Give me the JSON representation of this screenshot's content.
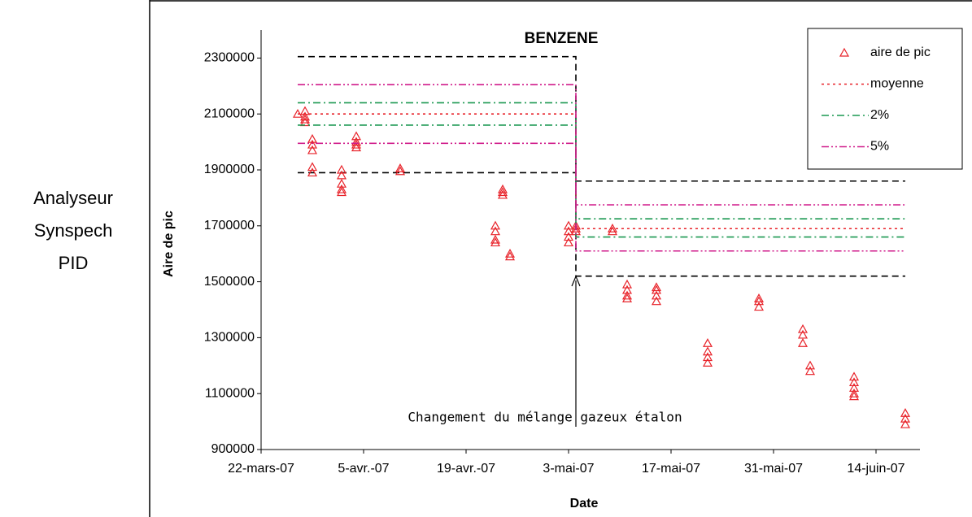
{
  "chart_data": {
    "type": "scatter",
    "title": "BENZENE",
    "side_label": [
      "Analyseur",
      "Synspech",
      "PID"
    ],
    "xlabel": "Date",
    "ylabel": "Aire de pic",
    "annotation": "Changement du mélange gazeux étalon",
    "xlim": [
      "2007-03-22",
      "2007-06-20"
    ],
    "xticks": [
      {
        "value": "2007-03-22",
        "label": "22-mars-07"
      },
      {
        "value": "2007-04-05",
        "label": "5-avr.-07"
      },
      {
        "value": "2007-04-19",
        "label": "19-avr.-07"
      },
      {
        "value": "2007-05-03",
        "label": "3-mai-07"
      },
      {
        "value": "2007-05-17",
        "label": "17-mai-07"
      },
      {
        "value": "2007-05-31",
        "label": "31-mai-07"
      },
      {
        "value": "2007-06-14",
        "label": "14-juin-07"
      }
    ],
    "ylim": [
      900000,
      2400000
    ],
    "yticks": [
      900000,
      1100000,
      1300000,
      1500000,
      1700000,
      1900000,
      2100000,
      2300000
    ],
    "series": [
      {
        "name": "aire de pic",
        "color": "#e8232a",
        "style": "marker",
        "x": [
          "2007-03-27",
          "2007-03-28",
          "2007-03-28",
          "2007-03-28",
          "2007-03-28",
          "2007-03-29",
          "2007-03-29",
          "2007-03-29",
          "2007-03-29",
          "2007-03-29",
          "2007-04-02",
          "2007-04-02",
          "2007-04-02",
          "2007-04-02",
          "2007-04-02",
          "2007-04-04",
          "2007-04-04",
          "2007-04-04",
          "2007-04-04",
          "2007-04-10",
          "2007-04-10",
          "2007-04-23",
          "2007-04-23",
          "2007-04-23",
          "2007-04-23",
          "2007-04-24",
          "2007-04-24",
          "2007-04-24",
          "2007-04-25",
          "2007-04-25",
          "2007-05-03",
          "2007-05-03",
          "2007-05-03",
          "2007-05-03",
          "2007-05-04",
          "2007-05-04",
          "2007-05-04",
          "2007-05-09",
          "2007-05-09",
          "2007-05-11",
          "2007-05-11",
          "2007-05-11",
          "2007-05-11",
          "2007-05-15",
          "2007-05-15",
          "2007-05-15",
          "2007-05-15",
          "2007-05-22",
          "2007-05-22",
          "2007-05-22",
          "2007-05-22",
          "2007-05-29",
          "2007-05-29",
          "2007-05-29",
          "2007-06-04",
          "2007-06-04",
          "2007-06-04",
          "2007-06-05",
          "2007-06-05",
          "2007-06-11",
          "2007-06-11",
          "2007-06-11",
          "2007-06-11",
          "2007-06-11",
          "2007-06-18",
          "2007-06-18",
          "2007-06-18"
        ],
        "values": [
          2100000,
          2110000,
          2090000,
          2080000,
          2070000,
          2010000,
          1990000,
          1970000,
          1910000,
          1890000,
          1900000,
          1880000,
          1850000,
          1830000,
          1820000,
          2020000,
          2000000,
          1990000,
          1980000,
          1905000,
          1895000,
          1700000,
          1680000,
          1650000,
          1640000,
          1830000,
          1820000,
          1810000,
          1600000,
          1590000,
          1700000,
          1680000,
          1660000,
          1640000,
          1700000,
          1690000,
          1680000,
          1690000,
          1680000,
          1490000,
          1470000,
          1450000,
          1440000,
          1480000,
          1470000,
          1450000,
          1430000,
          1280000,
          1250000,
          1230000,
          1210000,
          1440000,
          1430000,
          1410000,
          1330000,
          1310000,
          1280000,
          1200000,
          1180000,
          1160000,
          1140000,
          1120000,
          1100000,
          1090000,
          1030000,
          1010000,
          990000
        ]
      },
      {
        "name": "moyenne",
        "color": "#e8232a",
        "style": "dotted",
        "x": [
          "2007-03-27",
          "2007-05-04",
          "2007-05-04",
          "2007-06-18"
        ],
        "values": [
          2100000,
          2100000,
          1690000,
          1690000
        ]
      },
      {
        "name": "2%",
        "color": "#1a9850",
        "style": "dashdot",
        "x": [
          "2007-03-27",
          "2007-05-04",
          "2007-05-04",
          "2007-06-18"
        ],
        "values": [
          2140000,
          2140000,
          1725000,
          1725000
        ],
        "lower": [
          2060000,
          2060000,
          1660000,
          1660000
        ]
      },
      {
        "name": "5%",
        "color": "#d01c8b",
        "style": "dashdotdot",
        "x": [
          "2007-03-27",
          "2007-05-04",
          "2007-05-04",
          "2007-06-18"
        ],
        "values": [
          2205000,
          2205000,
          1775000,
          1775000
        ],
        "lower": [
          1995000,
          1995000,
          1610000,
          1610000
        ]
      }
    ],
    "limits": {
      "color": "#000000",
      "x": [
        "2007-03-27",
        "2007-05-04",
        "2007-05-04",
        "2007-06-18"
      ],
      "upper": [
        2305000,
        2305000,
        1860000,
        1860000
      ],
      "lower": [
        1890000,
        1890000,
        1520000,
        1520000
      ]
    },
    "grid": false
  }
}
